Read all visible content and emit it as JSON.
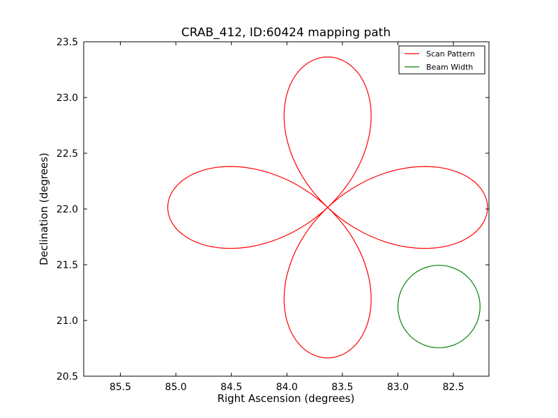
{
  "chart_data": {
    "type": "line",
    "title": "CRAB_412, ID:60424 mapping path",
    "xlabel": "Right Ascension (degrees)",
    "ylabel": "Declination (degrees)",
    "xlim": [
      85.83,
      82.18
    ],
    "ylim": [
      20.5,
      23.5
    ],
    "x_inverted": true,
    "grid": false,
    "legend_position": "top-right",
    "xticks": [
      85.5,
      85.0,
      84.5,
      84.0,
      83.5,
      83.0,
      82.5
    ],
    "xtick_labels": [
      "85.5",
      "85.0",
      "84.5",
      "84.0",
      "83.5",
      "83.0",
      "82.5"
    ],
    "yticks": [
      20.5,
      21.0,
      21.5,
      22.0,
      22.5,
      23.0,
      23.5
    ],
    "ytick_labels": [
      "20.5",
      "21.0",
      "21.5",
      "22.0",
      "22.5",
      "23.0",
      "23.5"
    ],
    "series": [
      {
        "name": "Scan Pattern",
        "color": "#ff0000",
        "shape": "four-petal rose",
        "center": [
          83.633,
          22.014
        ],
        "petal_radius_ra": 1.44,
        "petal_radius_dec": 1.35,
        "start_angle_deg": 178,
        "end_angle_deg": 540
      },
      {
        "name": "Beam Width",
        "color": "#008000",
        "shape": "circle",
        "center": [
          82.63,
          21.125
        ],
        "radius_ra": 0.37,
        "radius_dec": 0.37
      }
    ]
  }
}
